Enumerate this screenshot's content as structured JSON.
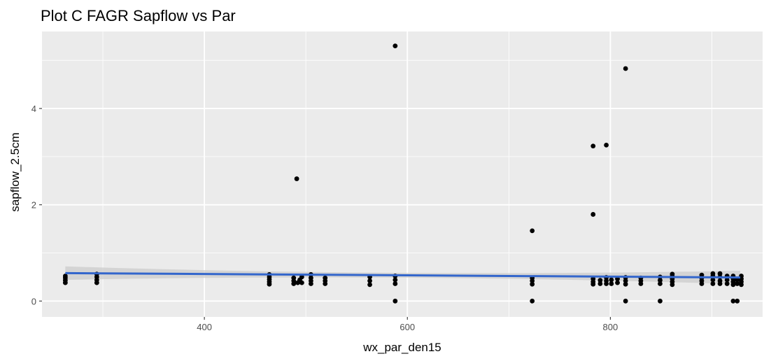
{
  "chart_data": {
    "type": "scatter",
    "title": "Plot C FAGR Sapflow vs Par",
    "xlabel": "wx_par_den15",
    "ylabel": "sapflow_2.5cm",
    "xlim": [
      240,
      950
    ],
    "ylim": [
      -0.33,
      5.6
    ],
    "x_ticks": [
      400,
      600,
      800
    ],
    "x_tick_labels": [
      "400",
      "600",
      "800"
    ],
    "x_minor_ticks": [
      300,
      500,
      700,
      900
    ],
    "y_ticks": [
      0,
      2,
      4
    ],
    "y_tick_labels": [
      "0",
      "2",
      "4"
    ],
    "y_minor_ticks": [
      1,
      3,
      5
    ],
    "grid": true,
    "legend": "none",
    "colors": {
      "panel": "#ebebeb",
      "grid": "#ffffff",
      "point": "#000000",
      "trend": "#3366cc",
      "band": "#cccccc"
    },
    "trend_line": {
      "method": "linear",
      "x": [
        263,
        928
      ],
      "y": [
        0.58,
        0.49
      ],
      "ci_halfwidth_ends": 0.14,
      "ci_halfwidth_mid": 0.05
    },
    "points": [
      [
        263,
        0.38
      ],
      [
        263,
        0.43
      ],
      [
        263,
        0.48
      ],
      [
        263,
        0.52
      ],
      [
        294,
        0.38
      ],
      [
        294,
        0.44
      ],
      [
        294,
        0.5
      ],
      [
        294,
        0.56
      ],
      [
        464,
        0.35
      ],
      [
        464,
        0.4
      ],
      [
        464,
        0.45
      ],
      [
        464,
        0.5
      ],
      [
        464,
        0.55
      ],
      [
        488,
        0.36
      ],
      [
        488,
        0.42
      ],
      [
        488,
        0.48
      ],
      [
        491,
        2.54
      ],
      [
        492,
        0.38
      ],
      [
        494,
        0.44
      ],
      [
        496,
        0.38
      ],
      [
        496,
        0.5
      ],
      [
        505,
        0.36
      ],
      [
        505,
        0.42
      ],
      [
        505,
        0.48
      ],
      [
        505,
        0.55
      ],
      [
        519,
        0.36
      ],
      [
        519,
        0.42
      ],
      [
        519,
        0.48
      ],
      [
        563,
        0.34
      ],
      [
        563,
        0.42
      ],
      [
        563,
        0.5
      ],
      [
        588,
        5.3
      ],
      [
        588,
        0.0
      ],
      [
        588,
        0.36
      ],
      [
        588,
        0.44
      ],
      [
        588,
        0.52
      ],
      [
        723,
        1.46
      ],
      [
        723,
        0.0
      ],
      [
        723,
        0.35
      ],
      [
        723,
        0.42
      ],
      [
        723,
        0.48
      ],
      [
        783,
        3.22
      ],
      [
        783,
        1.8
      ],
      [
        783,
        0.35
      ],
      [
        783,
        0.4
      ],
      [
        783,
        0.46
      ],
      [
        790,
        0.36
      ],
      [
        790,
        0.43
      ],
      [
        796,
        3.24
      ],
      [
        796,
        0.36
      ],
      [
        796,
        0.42
      ],
      [
        796,
        0.49
      ],
      [
        801,
        0.36
      ],
      [
        801,
        0.44
      ],
      [
        807,
        0.38
      ],
      [
        807,
        0.46
      ],
      [
        815,
        4.83
      ],
      [
        815,
        0.0
      ],
      [
        815,
        0.35
      ],
      [
        815,
        0.42
      ],
      [
        815,
        0.49
      ],
      [
        830,
        0.36
      ],
      [
        830,
        0.42
      ],
      [
        830,
        0.48
      ],
      [
        849,
        0.0
      ],
      [
        849,
        0.36
      ],
      [
        849,
        0.43
      ],
      [
        849,
        0.5
      ],
      [
        861,
        0.34
      ],
      [
        861,
        0.4
      ],
      [
        861,
        0.46
      ],
      [
        861,
        0.52
      ],
      [
        861,
        0.56
      ],
      [
        890,
        0.36
      ],
      [
        890,
        0.42
      ],
      [
        890,
        0.48
      ],
      [
        890,
        0.54
      ],
      [
        901,
        0.36
      ],
      [
        901,
        0.44
      ],
      [
        901,
        0.52
      ],
      [
        901,
        0.57
      ],
      [
        908,
        0.36
      ],
      [
        908,
        0.42
      ],
      [
        908,
        0.5
      ],
      [
        908,
        0.57
      ],
      [
        915,
        0.36
      ],
      [
        915,
        0.44
      ],
      [
        915,
        0.52
      ],
      [
        921,
        0.0
      ],
      [
        921,
        0.34
      ],
      [
        921,
        0.4
      ],
      [
        921,
        0.46
      ],
      [
        921,
        0.52
      ],
      [
        925,
        0.0
      ],
      [
        925,
        0.36
      ],
      [
        925,
        0.44
      ],
      [
        929,
        0.34
      ],
      [
        929,
        0.4
      ],
      [
        929,
        0.46
      ],
      [
        929,
        0.52
      ]
    ]
  }
}
